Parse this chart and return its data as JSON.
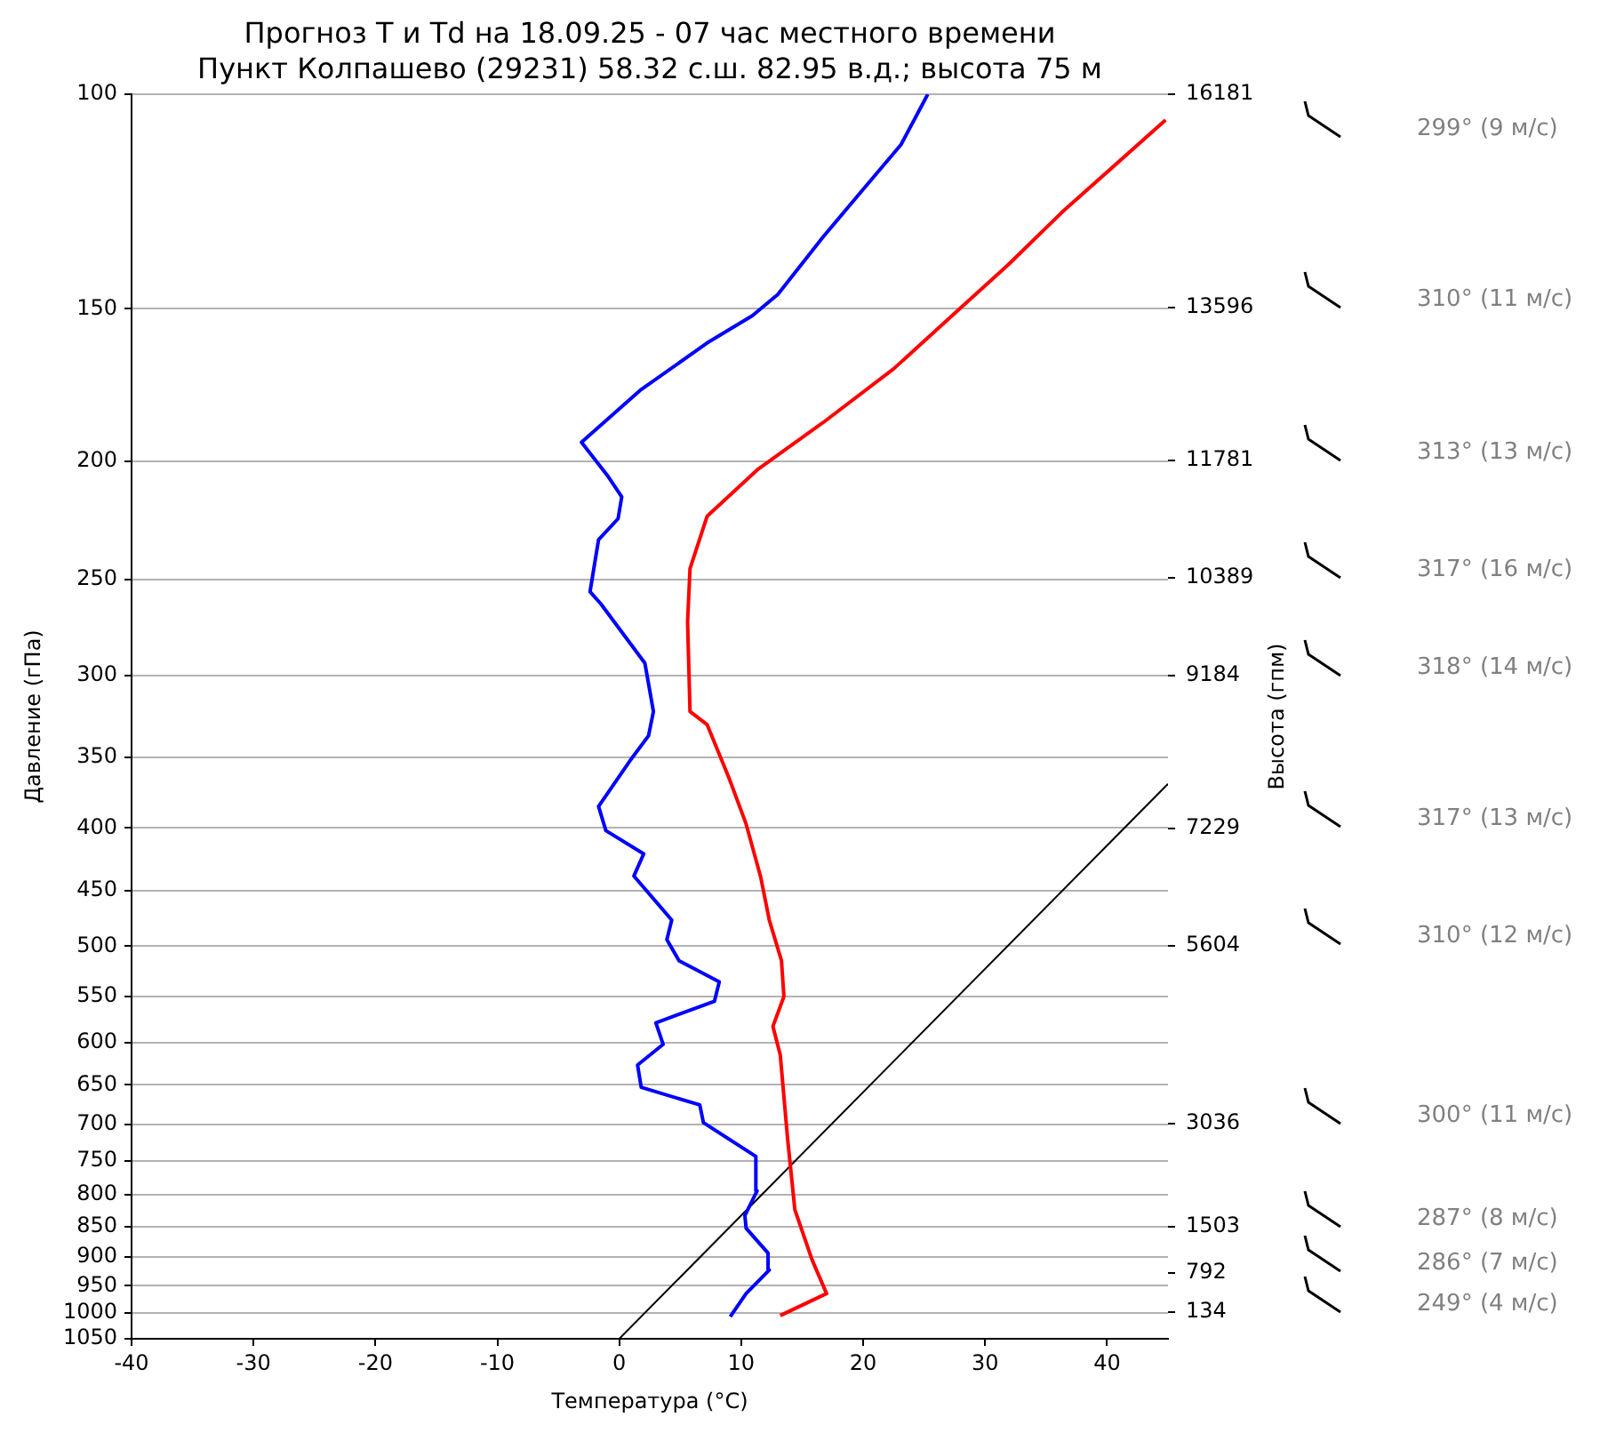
{
  "chart_data": {
    "type": "line",
    "title": "Прогноз T и Td на 18.09.25 - 07 час местного времени",
    "subtitle": "Пункт Колпашево (29231) 58.32 с.ш. 82.95 в.д.; высота 75 м",
    "xlabel": "Температура (°C)",
    "ylabel": "Давление (гПа)",
    "y2label": "Высота (гпм)",
    "xlim": [
      -40,
      45
    ],
    "xticks": [
      -40,
      -30,
      -20,
      -10,
      0,
      10,
      20,
      30,
      40
    ],
    "ylim": [
      1050,
      100
    ],
    "yticks": [
      100,
      150,
      200,
      250,
      300,
      350,
      400,
      450,
      500,
      550,
      600,
      650,
      700,
      750,
      800,
      850,
      900,
      950,
      1000,
      1050
    ],
    "log": "y",
    "grid": "y",
    "legend": false,
    "marker": "none",
    "line_style": "solid",
    "series": [
      {
        "color": "#ff0000",
        "x": [
          13.2,
          17.0,
          15.8,
          14.4,
          13.8,
          13.2,
          12.6,
          13.5,
          13.3,
          12.3,
          11.6,
          10.4,
          9.0,
          7.2,
          5.8,
          5.6,
          5.8,
          7.2,
          11.4,
          16.7,
          22.5,
          27.9,
          31.9,
          36.3,
          44.8
        ],
        "values": [
          1005,
          964,
          904,
          823,
          719,
          614,
          582,
          550,
          514,
          476,
          439,
          397,
          364,
          329,
          321,
          271,
          245,
          222,
          203,
          186,
          168,
          150,
          138,
          125,
          105
        ]
      },
      {
        "color": "#0000ff",
        "x": [
          9.1,
          10.4,
          12.3,
          12.2,
          10.4,
          10.3,
          11.3,
          11.2,
          6.9,
          6.6,
          1.8,
          1.5,
          3.6,
          3.0,
          7.8,
          8.2,
          4.9,
          3.9,
          4.3,
          1.2,
          2.0,
          -1.1,
          -1.7,
          0.9,
          2.4,
          2.8,
          2.1,
          -1.5,
          -2.4,
          -1.7,
          -0.1,
          0.2,
          -0.9,
          -3.1,
          1.7,
          7.2,
          10.9,
          13.0,
          16.7,
          19.6,
          23.1,
          25.3
        ],
        "values": [
          1007,
          964,
          922,
          893,
          852,
          832,
          794,
          744,
          698,
          675,
          653,
          626,
          602,
          578,
          555,
          535,
          514,
          494,
          476,
          438,
          420,
          402,
          384,
          352,
          336,
          321,
          293,
          262,
          256,
          232,
          223,
          214,
          206,
          193,
          175,
          160,
          152,
          146,
          131,
          121,
          110,
          100
        ]
      },
      {
        "color": "#000000",
        "x": [
          0,
          45
        ],
        "values": [
          1050,
          368
        ]
      }
    ],
    "annotations": [
      "16181",
      "13596",
      "11781",
      "10389",
      "9184",
      "7229",
      "5604",
      "3036",
      "1503",
      "792",
      "134",
      "299° (9 м/с)",
      "310° (11 м/с)",
      "313° (13 м/с)",
      "317° (16 м/с)",
      "318° (14 м/с)",
      "317° (13 м/с)",
      "310° (12 м/с)",
      "300° (11 м/с)",
      "287° (8 м/с)",
      "286° (7 м/с)",
      "249° (4 м/с)"
    ]
  }
}
